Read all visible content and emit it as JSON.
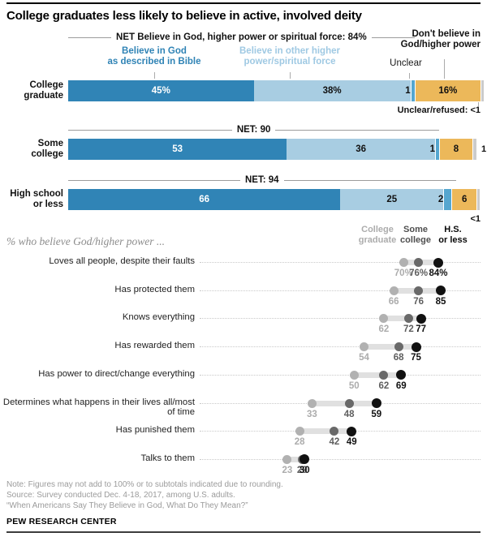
{
  "title": "College graduates less likely to believe in active, involved deity",
  "colors": {
    "bible": "#3084B6",
    "other": "#A8CDE2",
    "unclear": "#55A6CF",
    "dont": "#ECB85A",
    "refused": "#CBCBCB",
    "net_rule": "#9C9C9C",
    "dot_college": "#B1B1B1",
    "dot_some": "#696969",
    "dot_hs": "#111111",
    "band": "#E0E0E0",
    "val_college": "#ACACAC",
    "val_some": "#5E5E5E",
    "val_hs": "#111111"
  },
  "stacked": {
    "legend": {
      "bible_line1": "Believe in God",
      "bible_line2": "as described in Bible",
      "other_line1": "Believe in other higher",
      "other_line2": "power/spiritual force",
      "unclear": "Unclear",
      "dont_line1": "Don't believe in",
      "dont_line2": "God/higher power"
    }
  },
  "footer": {
    "notes": [
      "Note: Figures may not add to 100% or to subtotals indicated due to rounding.",
      "Source: Survey conducted Dec. 4-18, 2017, among U.S. adults.",
      "“When Americans Say They Believe in God, What Do They Mean?”"
    ],
    "brand": "PEW RESEARCH CENTER"
  },
  "chart_data": [
    {
      "type": "bar",
      "subtype": "horizontal-stacked",
      "categories": [
        "College graduate",
        "Some college",
        "High school or less"
      ],
      "category_label_lines": [
        [
          "College",
          "graduate"
        ],
        [
          "Some",
          "college"
        ],
        [
          "High school",
          "or less"
        ]
      ],
      "series_names": [
        "Believe in God as described in Bible",
        "Believe in other higher power/spiritual force",
        "Unclear",
        "Don't believe in God/higher power",
        "Unclear/refused"
      ],
      "xlim": [
        0,
        100
      ],
      "rows": [
        {
          "net_label": "NET Believe in God, higher power or spiritual force: 84%",
          "net_value": 84,
          "segments": [
            {
              "key": "bible",
              "value": 45,
              "label": "45%"
            },
            {
              "key": "other",
              "value": 38,
              "label": "38%"
            },
            {
              "key": "unclear",
              "value": 1,
              "label": "1"
            },
            {
              "key": "dont",
              "value": 16,
              "label": "16%"
            },
            {
              "key": "refused",
              "value": 0.7,
              "label": ""
            }
          ],
          "annotation": {
            "type": "below",
            "text": "Unclear/refused: <1"
          }
        },
        {
          "net_label": "NET: 90",
          "net_value": 90,
          "segments": [
            {
              "key": "bible",
              "value": 53,
              "label": "53"
            },
            {
              "key": "other",
              "value": 36,
              "label": "36"
            },
            {
              "key": "unclear",
              "value": 1,
              "label": "1"
            },
            {
              "key": "dont",
              "value": 8,
              "label": "8"
            },
            {
              "key": "refused",
              "value": 1,
              "label": ""
            }
          ],
          "annotation": {
            "type": "right",
            "text": "1"
          }
        },
        {
          "net_label": "NET: 94",
          "net_value": 94,
          "segments": [
            {
              "key": "bible",
              "value": 66,
              "label": "66"
            },
            {
              "key": "other",
              "value": 25,
              "label": "25"
            },
            {
              "key": "unclear",
              "value": 2,
              "label": "2"
            },
            {
              "key": "dont",
              "value": 6,
              "label": "6"
            },
            {
              "key": "refused",
              "value": 0.7,
              "label": ""
            }
          ],
          "annotation": {
            "type": "below",
            "text": "<1"
          }
        }
      ]
    },
    {
      "type": "scatter",
      "subtype": "dot-plot",
      "title": "% who believe God/higher power ...",
      "groups": [
        "College graduate",
        "Some college",
        "H.S. or less"
      ],
      "group_header_lines": [
        [
          "College",
          "graduate"
        ],
        [
          "Some",
          "college"
        ],
        [
          "H.S.",
          "or less"
        ]
      ],
      "xlim": [
        20,
        90
      ],
      "rows": [
        {
          "label": "Loves all people, despite their faults",
          "values": [
            70,
            76,
            84
          ],
          "value_labels": [
            "70%",
            "76%",
            "84%"
          ]
        },
        {
          "label": "Has protected them",
          "values": [
            66,
            76,
            85
          ],
          "value_labels": [
            "66",
            "76",
            "85"
          ]
        },
        {
          "label": "Knows everything",
          "values": [
            62,
            72,
            77
          ],
          "value_labels": [
            "62",
            "72",
            "77"
          ]
        },
        {
          "label": "Has rewarded them",
          "values": [
            54,
            68,
            75
          ],
          "value_labels": [
            "54",
            "68",
            "75"
          ]
        },
        {
          "label": "Has power to direct/change everything",
          "values": [
            50,
            62,
            69
          ],
          "value_labels": [
            "50",
            "62",
            "69"
          ]
        },
        {
          "label": "Determines what happens in their lives all/most of time",
          "values": [
            33,
            48,
            59
          ],
          "value_labels": [
            "33",
            "48",
            "59"
          ]
        },
        {
          "label": "Has punished them",
          "values": [
            28,
            42,
            49
          ],
          "value_labels": [
            "28",
            "42",
            "49"
          ]
        },
        {
          "label": "Talks to them",
          "values": [
            23,
            29,
            30
          ],
          "value_labels": [
            "23",
            "29",
            "30"
          ]
        }
      ]
    }
  ]
}
